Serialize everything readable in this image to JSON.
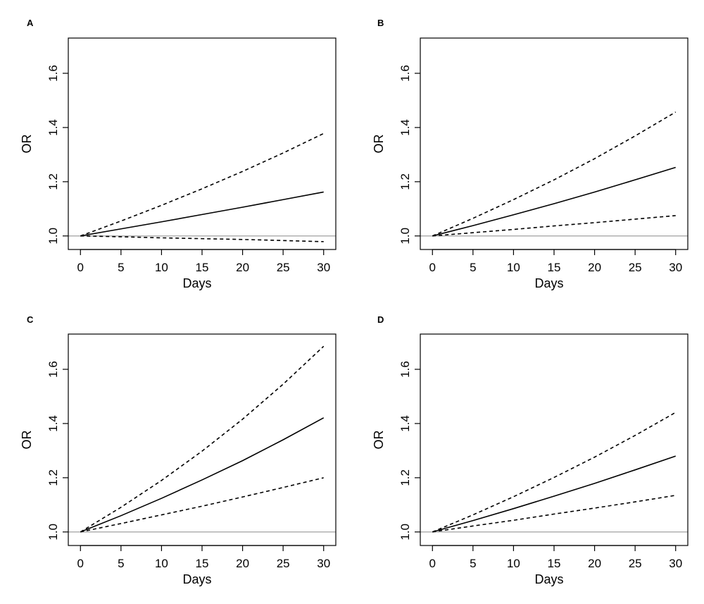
{
  "chart_data": [
    {
      "type": "line",
      "panel": "A",
      "xlabel": "Days",
      "ylabel": "OR",
      "xlim": [
        -1.5,
        31.5
      ],
      "ylim": [
        0.95,
        1.73
      ],
      "xticks": [
        0,
        5,
        10,
        15,
        20,
        25,
        30
      ],
      "yticks": [
        1.0,
        1.2,
        1.4,
        1.6
      ],
      "xtick_labels": [
        "0",
        "5",
        "10",
        "15",
        "20",
        "25",
        "30"
      ],
      "ytick_labels": [
        "1.0",
        "1.2",
        "1.4",
        "1.6"
      ],
      "reference_line": 1.0,
      "x": [
        0,
        5,
        10,
        15,
        20,
        25,
        30
      ],
      "series": [
        {
          "name": "estimate",
          "style": "solid",
          "values": [
            1.0,
            1.026,
            1.052,
            1.079,
            1.106,
            1.134,
            1.162
          ]
        },
        {
          "name": "upper",
          "style": "dashed",
          "values": [
            1.0,
            1.055,
            1.113,
            1.174,
            1.238,
            1.306,
            1.378
          ]
        },
        {
          "name": "lower",
          "style": "dashed",
          "values": [
            1.0,
            0.997,
            0.993,
            0.99,
            0.987,
            0.983,
            0.979
          ]
        }
      ]
    },
    {
      "type": "line",
      "panel": "B",
      "xlabel": "Days",
      "ylabel": "OR",
      "xlim": [
        -1.5,
        31.5
      ],
      "ylim": [
        0.95,
        1.73
      ],
      "xticks": [
        0,
        5,
        10,
        15,
        20,
        25,
        30
      ],
      "yticks": [
        1.0,
        1.2,
        1.4,
        1.6
      ],
      "xtick_labels": [
        "0",
        "5",
        "10",
        "15",
        "20",
        "25",
        "30"
      ],
      "ytick_labels": [
        "1.0",
        "1.2",
        "1.4",
        "1.6"
      ],
      "reference_line": 1.0,
      "x": [
        0,
        5,
        10,
        15,
        20,
        25,
        30
      ],
      "series": [
        {
          "name": "estimate",
          "style": "solid",
          "values": [
            1.0,
            1.038,
            1.078,
            1.119,
            1.162,
            1.207,
            1.253
          ]
        },
        {
          "name": "upper",
          "style": "dashed",
          "values": [
            1.0,
            1.065,
            1.134,
            1.207,
            1.285,
            1.369,
            1.457
          ]
        },
        {
          "name": "lower",
          "style": "dashed",
          "values": [
            1.0,
            1.012,
            1.024,
            1.037,
            1.049,
            1.062,
            1.075
          ]
        }
      ]
    },
    {
      "type": "line",
      "panel": "C",
      "xlabel": "Days",
      "ylabel": "OR",
      "xlim": [
        -1.5,
        31.5
      ],
      "ylim": [
        0.95,
        1.73
      ],
      "xticks": [
        0,
        5,
        10,
        15,
        20,
        25,
        30
      ],
      "yticks": [
        1.0,
        1.2,
        1.4,
        1.6
      ],
      "xtick_labels": [
        "0",
        "5",
        "10",
        "15",
        "20",
        "25",
        "30"
      ],
      "ytick_labels": [
        "1.0",
        "1.2",
        "1.4",
        "1.6"
      ],
      "reference_line": 1.0,
      "x": [
        0,
        5,
        10,
        15,
        20,
        25,
        30
      ],
      "series": [
        {
          "name": "estimate",
          "style": "solid",
          "values": [
            1.0,
            1.06,
            1.124,
            1.192,
            1.263,
            1.34,
            1.421
          ]
        },
        {
          "name": "upper",
          "style": "dashed",
          "values": [
            1.0,
            1.091,
            1.19,
            1.298,
            1.416,
            1.545,
            1.685
          ]
        },
        {
          "name": "lower",
          "style": "dashed",
          "values": [
            1.0,
            1.031,
            1.063,
            1.095,
            1.129,
            1.164,
            1.2
          ]
        }
      ]
    },
    {
      "type": "line",
      "panel": "D",
      "xlabel": "Days",
      "ylabel": "OR",
      "xlim": [
        -1.5,
        31.5
      ],
      "ylim": [
        0.95,
        1.73
      ],
      "xticks": [
        0,
        5,
        10,
        15,
        20,
        25,
        30
      ],
      "yticks": [
        1.0,
        1.2,
        1.4,
        1.6
      ],
      "xtick_labels": [
        "0",
        "5",
        "10",
        "15",
        "20",
        "25",
        "30"
      ],
      "ytick_labels": [
        "1.0",
        "1.2",
        "1.4",
        "1.6"
      ],
      "reference_line": 1.0,
      "x": [
        0,
        5,
        10,
        15,
        20,
        25,
        30
      ],
      "series": [
        {
          "name": "estimate",
          "style": "solid",
          "values": [
            1.0,
            1.042,
            1.086,
            1.132,
            1.179,
            1.229,
            1.28
          ]
        },
        {
          "name": "upper",
          "style": "dashed",
          "values": [
            1.0,
            1.063,
            1.13,
            1.201,
            1.276,
            1.356,
            1.441
          ]
        },
        {
          "name": "lower",
          "style": "dashed",
          "values": [
            1.0,
            1.022,
            1.043,
            1.066,
            1.088,
            1.111,
            1.135
          ]
        }
      ]
    }
  ],
  "colors": {
    "line": "#000000",
    "reference": "#b0b0b0",
    "frame": "#000000"
  }
}
